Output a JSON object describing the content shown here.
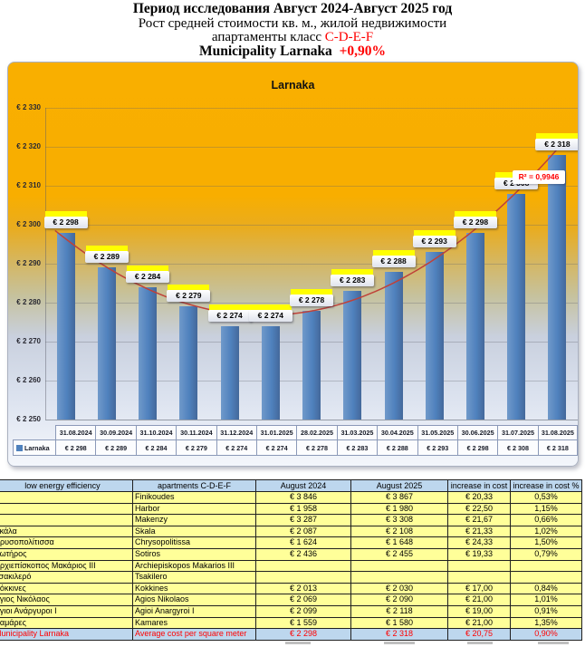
{
  "header": {
    "line1": "Период исследования Август 2024-Август 2025 год",
    "line2": "Рост средней стоимости кв. м., жилой недвижимости",
    "line3_prefix": "апартаменты класс ",
    "line3_class": "C-D-E-F",
    "line4_name": "Municipality Larnaka",
    "line4_change": "+0,90%"
  },
  "chart_data": {
    "type": "bar",
    "title": "Larnaka",
    "categories": [
      "31.08.2024",
      "30.09.2024",
      "31.10.2024",
      "30.11.2024",
      "31.12.2024",
      "31.01.2025",
      "28.02.2025",
      "31.03.2025",
      "30.04.2025",
      "31.05.2025",
      "30.06.2025",
      "31.07.2025",
      "31.08.2025"
    ],
    "series": [
      {
        "name": "Larnaka",
        "values": [
          2298,
          2289,
          2284,
          2279,
          2274,
          2274,
          2278,
          2283,
          2288,
          2293,
          2298,
          2308,
          2318
        ]
      }
    ],
    "ylim": [
      2250,
      2330
    ],
    "ytick_step": 10,
    "currency_prefix": "€ ",
    "grid": true,
    "legend_position": "bottom-table",
    "trendline": {
      "type": "polynomial",
      "r2_label": "R² = 0,9946"
    },
    "colors": {
      "bar": "#4F81BD",
      "trend": "#BF4139",
      "bg_top": "#F8AE00",
      "bg_bottom": "#F0F3FA",
      "label_highlight": "#FFFF00",
      "table_header_bg": "#BDD7EE",
      "table_row_bg": "#FFFF99",
      "highlight_text": "#FF0000"
    }
  },
  "table": {
    "headers": [
      "low energy efficiency",
      "apartments C-D-E-F",
      "August 2024",
      "August 2025",
      "increase in cost",
      "increase in cost %"
    ],
    "rows": [
      {
        "cells": [
          "",
          "Finikoudes",
          "€ 3 846",
          "€ 3 867",
          "€ 20,33",
          "0,53%"
        ],
        "highlight": false
      },
      {
        "cells": [
          "",
          "Harbor",
          "€ 1 958",
          "€ 1 980",
          "€ 22,50",
          "1,15%"
        ],
        "highlight": false
      },
      {
        "cells": [
          "",
          "Makenzy",
          "€ 3 287",
          "€ 3 308",
          "€ 21,67",
          "0,66%"
        ],
        "highlight": false
      },
      {
        "cells": [
          "Σκάλα",
          "Skala",
          "€ 2 087",
          "€ 2 108",
          "€ 21,33",
          "1,02%"
        ],
        "highlight": false
      },
      {
        "cells": [
          "Χρυσοπολίτισσα",
          "Chrysopolitissa",
          "€ 1 624",
          "€ 1 648",
          "€ 24,33",
          "1,50%"
        ],
        "highlight": false
      },
      {
        "cells": [
          "Σωτήρος",
          "Sotiros",
          "€ 2 436",
          "€ 2 455",
          "€ 19,33",
          "0,79%"
        ],
        "highlight": false
      },
      {
        "cells": [
          "Αρχιεπίσκοπος Μακάριος ΙΙΙ",
          "Archiepiskopos Makarios III",
          "",
          "",
          "",
          ""
        ],
        "highlight": false
      },
      {
        "cells": [
          "Τσακιλερό",
          "Tsakilero",
          "",
          "",
          "",
          ""
        ],
        "highlight": false
      },
      {
        "cells": [
          "Κόκκινες",
          "Kokkines",
          "€ 2 013",
          "€ 2 030",
          "€ 17,00",
          "0,84%"
        ],
        "highlight": false
      },
      {
        "cells": [
          "Άγιος Νικόλαος",
          "Agios Nikolaos",
          "€ 2 069",
          "€ 2 090",
          "€ 21,00",
          "1,01%"
        ],
        "highlight": false
      },
      {
        "cells": [
          "Άγιοι Ανάργυροι Ι",
          "Agioi Anargyroi I",
          "€ 2 099",
          "€ 2 118",
          "€ 19,00",
          "0,91%"
        ],
        "highlight": false
      },
      {
        "cells": [
          "Καμάρες",
          "Kamares",
          "€ 1 559",
          "€ 1 580",
          "€ 21,00",
          "1,35%"
        ],
        "highlight": false
      },
      {
        "cells": [
          "Municipality Larnaka",
          "Average cost per square meter",
          "€ 2 298",
          "€ 2 318",
          "€ 20,75",
          "0,90%"
        ],
        "highlight": true
      }
    ]
  }
}
